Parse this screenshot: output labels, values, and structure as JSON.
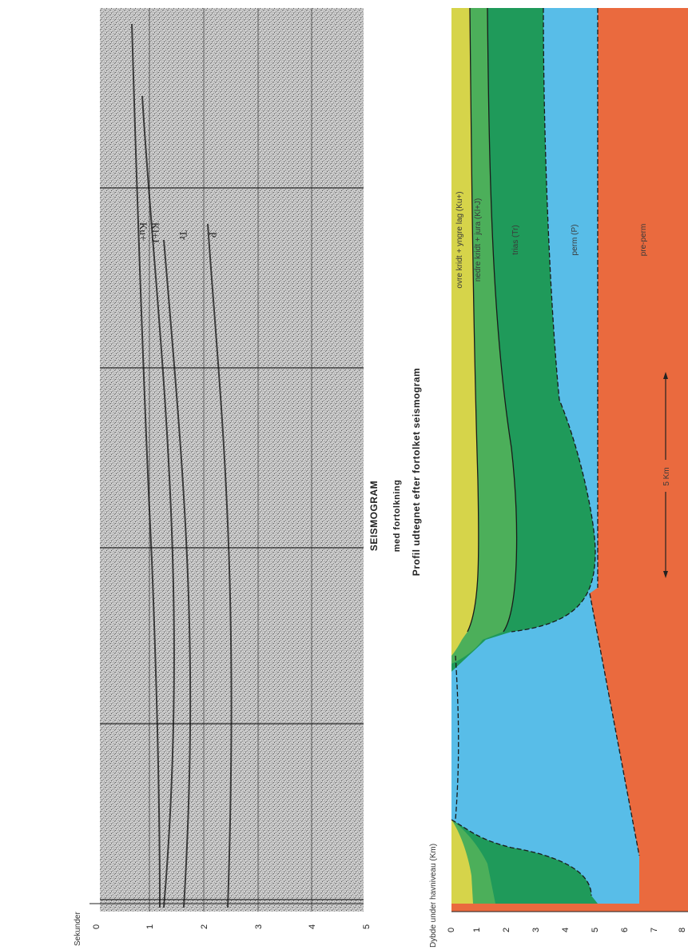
{
  "header": {
    "title": "SEISMOGRAM",
    "subtitle": "med fortolkning"
  },
  "seismogram": {
    "axis_label": "Sekunder",
    "ticks": [
      "0",
      "1",
      "2",
      "3",
      "4",
      "5"
    ],
    "reflector_labels": [
      "Ku+",
      "Kl+J",
      "Tr",
      "P"
    ]
  },
  "profile": {
    "caption": "Profil udtegnet efter fortolket seismogram",
    "axis_label": "Dybde under havniveau (Km)",
    "ticks": [
      "0",
      "1",
      "2",
      "3",
      "4",
      "5",
      "6",
      "7",
      "8"
    ],
    "scale_label": "5 Km",
    "layers": [
      {
        "name": "ovre kridt + yngre lag (Ku+)",
        "color": "#d6d44a"
      },
      {
        "name": "nedre kridt + jura (Kl+J)",
        "color": "#4caf5a"
      },
      {
        "name": "trias (Tr)",
        "color": "#1f9a5a"
      },
      {
        "name": "perm (P)",
        "color": "#58bde8"
      },
      {
        "name": "pre-perm",
        "color": "#ea6a3e"
      }
    ]
  }
}
